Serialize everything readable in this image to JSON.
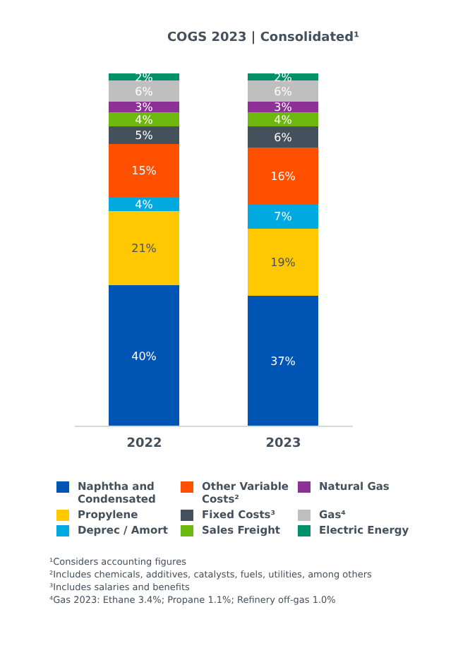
{
  "chart_data": {
    "type": "bar",
    "title": "COGS 2023 | Consolidated¹",
    "categories": [
      "2022",
      "2023"
    ],
    "stacked": true,
    "ylim": [
      0,
      100
    ],
    "tick_labels": "x",
    "legend": "bottom",
    "grid": false,
    "series": [
      {
        "name": "Naphtha and Condensated",
        "color": "#0054b4",
        "values": [
          40,
          37
        ],
        "value_labels": [
          "40%",
          "37%"
        ]
      },
      {
        "name": "Propylene",
        "color": "#ffc800",
        "values": [
          21,
          19
        ],
        "value_labels": [
          "21%",
          "19%"
        ]
      },
      {
        "name": "Deprec / Amort",
        "color": "#00a9e0",
        "values": [
          4,
          7
        ],
        "value_labels": [
          "4%",
          "7%"
        ]
      },
      {
        "name": "Other Variable Costs²",
        "color": "#ff5000",
        "values": [
          15,
          16
        ],
        "value_labels": [
          "15%",
          "16%"
        ]
      },
      {
        "name": "Fixed Costs³",
        "color": "#44505c",
        "values": [
          5,
          6
        ],
        "value_labels": [
          "5%",
          "6%"
        ]
      },
      {
        "name": "Sales Freight",
        "color": "#6cb80e",
        "values": [
          4,
          4
        ],
        "value_labels": [
          "4%",
          "4%"
        ]
      },
      {
        "name": "Natural Gas",
        "color": "#8e3196",
        "values": [
          3,
          3
        ],
        "value_labels": [
          "3%",
          "3%"
        ]
      },
      {
        "name": "Gas⁴",
        "color": "#bfbfbf",
        "values": [
          6,
          6
        ],
        "value_labels": [
          "6%",
          "6%"
        ]
      },
      {
        "name": "Electric Energy",
        "color": "#00906a",
        "values": [
          2,
          2
        ],
        "value_labels": [
          "2%",
          "2%"
        ]
      }
    ],
    "annotations": [
      "¹Considers accounting figures",
      "²Includes chemicals, additives, catalysts, fuels, utilities, among others",
      "³Includes salaries and benefits",
      "⁴Gas 2023: Ethane 3.4%; Propane 1.1%; Refinery off-gas 1.0%"
    ]
  }
}
